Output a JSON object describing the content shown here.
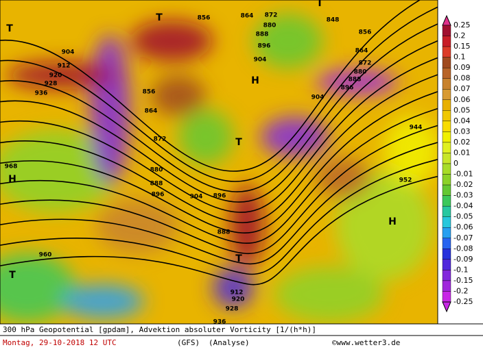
{
  "map": {
    "pressure_labels": [
      "912",
      "920",
      "928",
      "936",
      "904",
      "856",
      "864",
      "872",
      "880",
      "888",
      "896",
      "904",
      "888",
      "896",
      "912",
      "920",
      "928",
      "936",
      "848",
      "856",
      "864",
      "872",
      "880",
      "888",
      "896",
      "904",
      "944",
      "952",
      "960",
      "968",
      "856",
      "864",
      "872",
      "880",
      "888",
      "896",
      "904"
    ],
    "markers": [
      "T",
      "T",
      "H",
      "T",
      "H",
      "T",
      "T",
      "H",
      "T"
    ]
  },
  "colorbar": {
    "labels": [
      "0.25",
      "0.2",
      "0.15",
      "0.1",
      "0.09",
      "0.08",
      "0.07",
      "0.06",
      "0.05",
      "0.04",
      "0.03",
      "0.02",
      "0.01",
      "0",
      "-0.01",
      "-0.02",
      "-0.03",
      "-0.04",
      "-0.05",
      "-0.06",
      "-0.07",
      "-0.08",
      "-0.09",
      "-0.1",
      "-0.15",
      "-0.2",
      "-0.25"
    ],
    "colors": [
      "#e0308c",
      "#a01030",
      "#c81e28",
      "#dc3c28",
      "#a04a1e",
      "#b86428",
      "#c8822d",
      "#d89a32",
      "#e8b000",
      "#f0c800",
      "#f8dc00",
      "#f0f000",
      "#e0f020",
      "#c8e628",
      "#a8dc28",
      "#8cd228",
      "#64c832",
      "#3cc85a",
      "#28c8a0",
      "#28c8dc",
      "#28a0f0",
      "#2864f0",
      "#2832dc",
      "#5028dc",
      "#8228dc",
      "#a028dc",
      "#c828e6",
      "#c828e6"
    ]
  },
  "footer": {
    "description": "300 hPa Geopotential [gpdam], Advektion absoluter Vorticity [1/(h*h)]",
    "date": "Montag, 29-10-2018  12 UTC",
    "model": "(GFS)",
    "analysis": "(Analyse)",
    "credit": "©www.wetter3.de"
  }
}
